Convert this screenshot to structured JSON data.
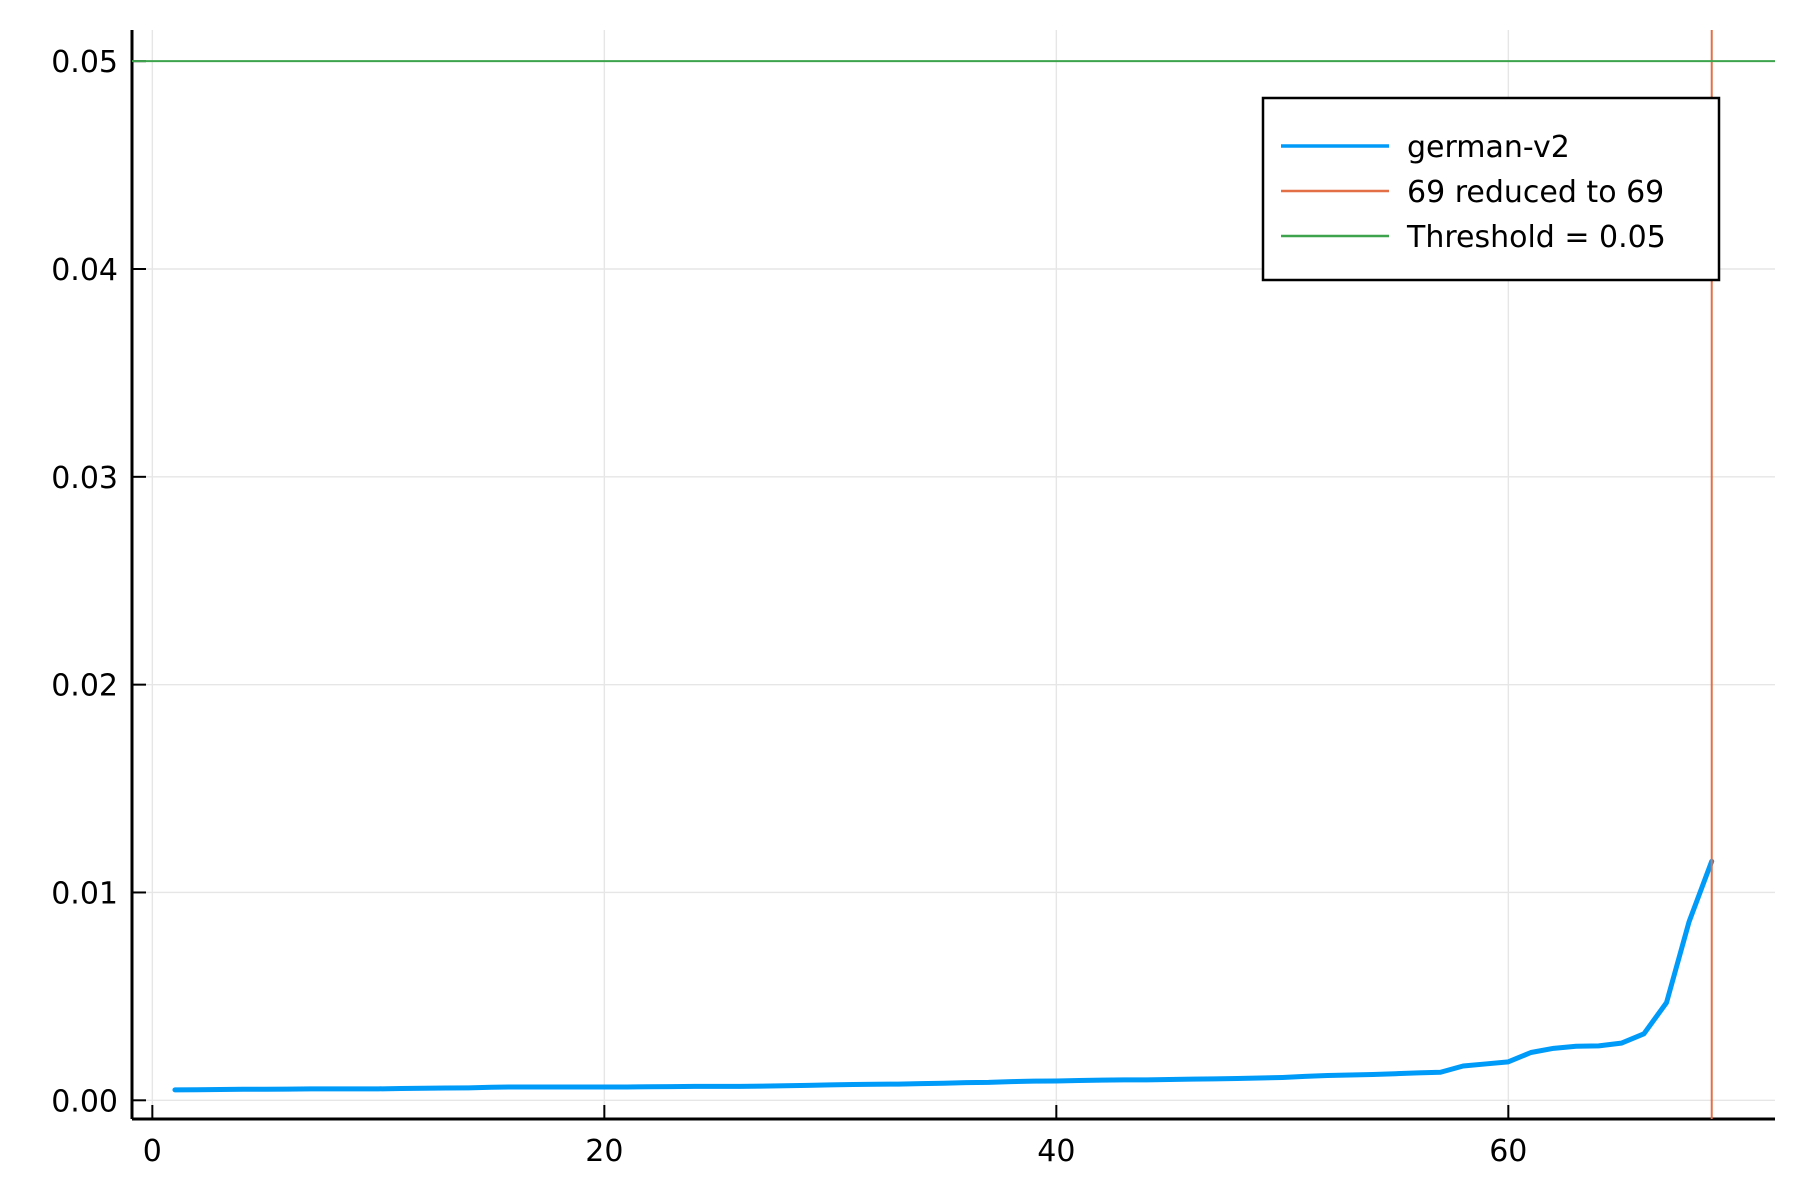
{
  "chart_data": {
    "type": "line",
    "title": "",
    "xlabel": "",
    "ylabel": "",
    "xlim": [
      -0.9,
      71.8
    ],
    "ylim": [
      -0.0009,
      0.0515
    ],
    "x_ticks": [
      0,
      20,
      40,
      60
    ],
    "x_tick_labels": [
      "0",
      "20",
      "40",
      "60"
    ],
    "y_ticks": [
      0.0,
      0.01,
      0.02,
      0.03,
      0.04,
      0.05
    ],
    "y_tick_labels": [
      "0.00",
      "0.01",
      "0.02",
      "0.03",
      "0.04",
      "0.05"
    ],
    "grid": true,
    "legend_position": "top-right",
    "series": [
      {
        "name": "german-v2",
        "kind": "line",
        "color": "#009af9",
        "x": [
          1,
          2,
          3,
          4,
          5,
          6,
          7,
          8,
          9,
          10,
          11,
          12,
          13,
          14,
          15,
          16,
          17,
          18,
          19,
          20,
          21,
          22,
          23,
          24,
          25,
          26,
          27,
          28,
          29,
          30,
          31,
          32,
          33,
          34,
          35,
          36,
          37,
          38,
          39,
          40,
          41,
          42,
          43,
          44,
          45,
          46,
          47,
          48,
          49,
          50,
          51,
          52,
          53,
          54,
          55,
          56,
          57,
          58,
          59,
          60,
          61,
          62,
          63,
          64,
          65,
          66,
          67,
          68,
          69
        ],
        "y": [
          0.0005,
          0.00051,
          0.00052,
          0.00053,
          0.00053,
          0.00054,
          0.00055,
          0.00055,
          0.00055,
          0.00055,
          0.00057,
          0.00058,
          0.00059,
          0.0006,
          0.00063,
          0.00064,
          0.00064,
          0.00064,
          0.00064,
          0.00064,
          0.00064,
          0.00065,
          0.00066,
          0.00067,
          0.00067,
          0.00067,
          0.00068,
          0.0007,
          0.00072,
          0.00074,
          0.00076,
          0.00077,
          0.00078,
          0.0008,
          0.00082,
          0.00085,
          0.00086,
          0.0009,
          0.00092,
          0.00093,
          0.00095,
          0.00097,
          0.00098,
          0.00098,
          0.001,
          0.00102,
          0.00103,
          0.00105,
          0.00107,
          0.0011,
          0.00115,
          0.00119,
          0.00122,
          0.00124,
          0.00128,
          0.00132,
          0.00135,
          0.00165,
          0.00175,
          0.00185,
          0.0023,
          0.0025,
          0.0026,
          0.00262,
          0.00275,
          0.0032,
          0.0047,
          0.0086,
          0.0115
        ]
      },
      {
        "name": "69 reduced to 69",
        "kind": "vline",
        "color": "#e26f46",
        "x_value": 69
      },
      {
        "name": "Threshold = 0.05",
        "kind": "hline",
        "color": "#3da44d",
        "y_value": 0.05
      }
    ]
  }
}
